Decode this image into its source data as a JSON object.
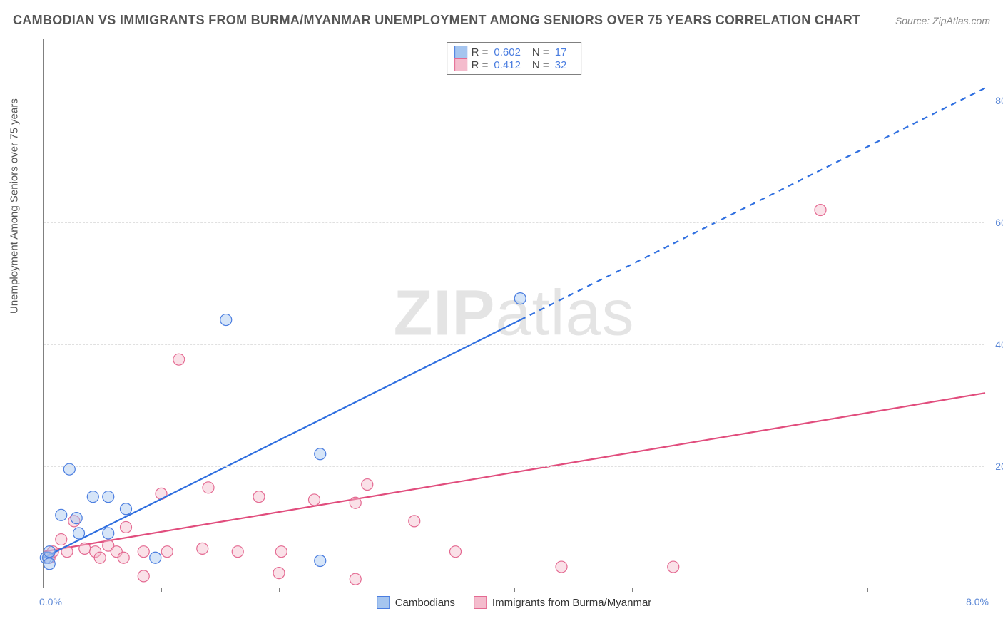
{
  "title": "CAMBODIAN VS IMMIGRANTS FROM BURMA/MYANMAR UNEMPLOYMENT AMONG SENIORS OVER 75 YEARS CORRELATION CHART",
  "source": "Source: ZipAtlas.com",
  "watermark_a": "ZIP",
  "watermark_b": "atlas",
  "y_axis_label": "Unemployment Among Seniors over 75 years",
  "chart": {
    "type": "scatter",
    "background_color": "#ffffff",
    "grid_color": "#e0e0e0",
    "axis_color": "#808080",
    "tick_label_color": "#5c88d6",
    "xlim": [
      0.0,
      8.0
    ],
    "ylim": [
      0.0,
      90.0
    ],
    "y_ticks": [
      20.0,
      40.0,
      60.0,
      80.0
    ],
    "y_tick_labels": [
      "20.0%",
      "40.0%",
      "60.0%",
      "80.0%"
    ],
    "x_ticks": [
      1.0,
      2.0,
      3.0,
      4.0,
      5.0,
      6.0,
      7.0
    ],
    "x_min_label": "0.0%",
    "x_max_label": "8.0%",
    "marker_radius": 8,
    "marker_opacity": 0.45,
    "line_width": 2.2,
    "series": [
      {
        "name": "Cambodians",
        "fill": "#a5c5ef",
        "stroke": "#4a7de0",
        "line_color": "#2f6fe0",
        "R": "0.602",
        "N": "17",
        "trend": {
          "x1": 0.0,
          "y1": 5.0,
          "x2": 8.0,
          "y2": 82.0,
          "solid_until_x": 4.05
        },
        "points": [
          [
            0.02,
            5.0
          ],
          [
            0.04,
            5.0
          ],
          [
            0.05,
            6.0
          ],
          [
            0.05,
            4.0
          ],
          [
            0.28,
            11.5
          ],
          [
            0.15,
            12.0
          ],
          [
            0.22,
            19.5
          ],
          [
            0.3,
            9.0
          ],
          [
            0.42,
            15.0
          ],
          [
            0.55,
            15.0
          ],
          [
            0.7,
            13.0
          ],
          [
            0.55,
            9.0
          ],
          [
            0.95,
            5.0
          ],
          [
            2.35,
            4.5
          ],
          [
            1.55,
            44.0
          ],
          [
            2.35,
            22.0
          ],
          [
            4.05,
            47.5
          ]
        ]
      },
      {
        "name": "Immigrants from Burma/Myanmar",
        "fill": "#f4bccd",
        "stroke": "#e46a92",
        "line_color": "#e14d7d",
        "R": "0.412",
        "N": "32",
        "trend": {
          "x1": 0.0,
          "y1": 6.0,
          "x2": 8.0,
          "y2": 32.0,
          "solid_until_x": 8.0
        },
        "points": [
          [
            0.05,
            5.0
          ],
          [
            0.08,
            6.0
          ],
          [
            0.15,
            8.0
          ],
          [
            0.2,
            6.0
          ],
          [
            0.26,
            11.0
          ],
          [
            0.35,
            6.5
          ],
          [
            0.44,
            6.0
          ],
          [
            0.48,
            5.0
          ],
          [
            0.55,
            7.0
          ],
          [
            0.62,
            6.0
          ],
          [
            0.68,
            5.0
          ],
          [
            0.7,
            10.0
          ],
          [
            0.85,
            6.0
          ],
          [
            0.85,
            2.0
          ],
          [
            1.0,
            15.5
          ],
          [
            1.05,
            6.0
          ],
          [
            1.15,
            37.5
          ],
          [
            1.35,
            6.5
          ],
          [
            1.4,
            16.5
          ],
          [
            1.65,
            6.0
          ],
          [
            1.83,
            15.0
          ],
          [
            2.0,
            2.5
          ],
          [
            2.02,
            6.0
          ],
          [
            2.3,
            14.5
          ],
          [
            2.65,
            14.0
          ],
          [
            2.65,
            1.5
          ],
          [
            2.75,
            17.0
          ],
          [
            3.15,
            11.0
          ],
          [
            3.5,
            6.0
          ],
          [
            4.4,
            3.5
          ],
          [
            5.35,
            3.5
          ],
          [
            6.6,
            62.0
          ]
        ]
      }
    ]
  },
  "legend_bottom": [
    {
      "label": "Cambodians",
      "fill": "#a5c5ef",
      "stroke": "#4a7de0"
    },
    {
      "label": "Immigrants from Burma/Myanmar",
      "fill": "#f4bccd",
      "stroke": "#e46a92"
    }
  ]
}
